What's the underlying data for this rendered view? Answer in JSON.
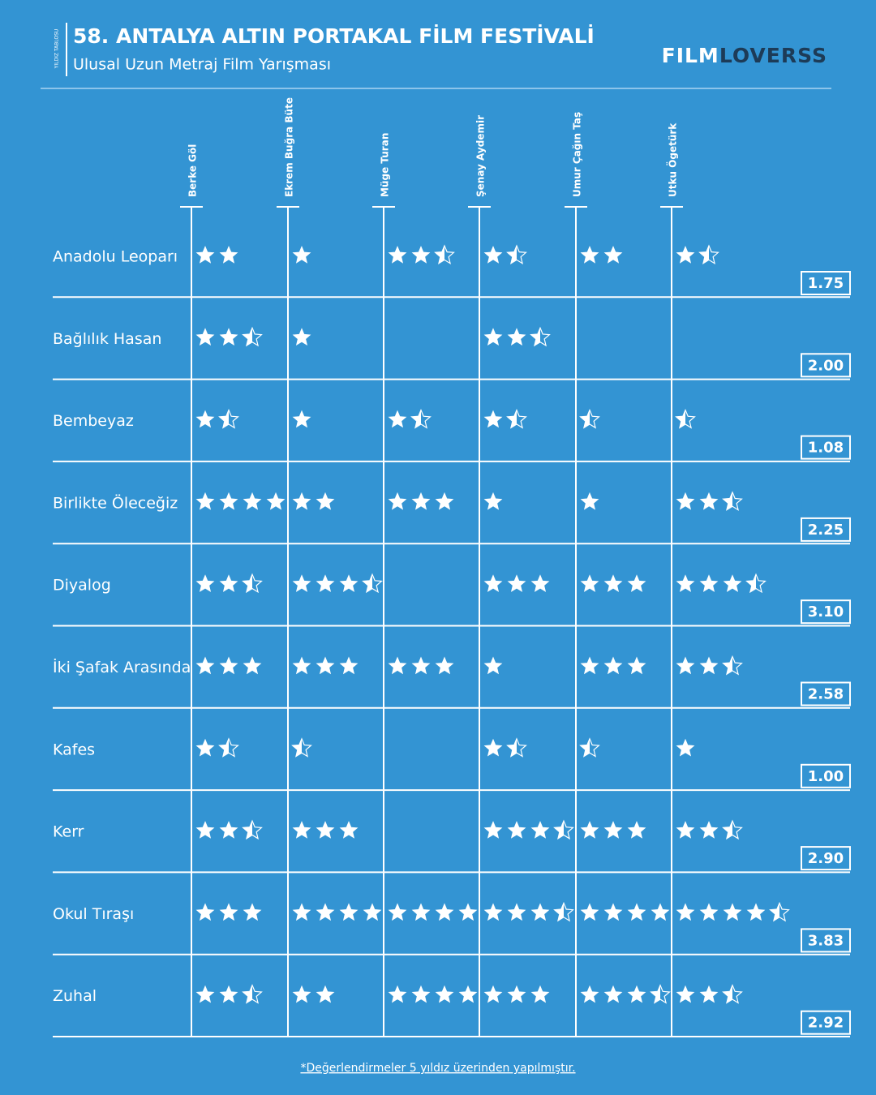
{
  "header": {
    "side_label": "YILDIZ TABLOSU",
    "title": "58. ANTALYA ALTIN PORTAKAL FİLM FESTİVALİ",
    "subtitle": "Ulusal Uzun Metraj Film Yarışması",
    "brand_first": "FILM",
    "brand_second": "LOVERSS"
  },
  "table": {
    "critics": [
      "Berke Göl",
      "Ekrem Buğra Büte",
      "Müge Turan",
      "Şenay Aydemir",
      "Umur Çağın Taş",
      "Utku Ögetürk"
    ],
    "rows": [
      {
        "film": "Anadolu Leoparı",
        "ratings": [
          2,
          1,
          2.5,
          1.5,
          2,
          1.5
        ],
        "average": "1.75"
      },
      {
        "film": "Bağlılık Hasan",
        "ratings": [
          2.5,
          1,
          null,
          2.5,
          null,
          null
        ],
        "average": "2.00"
      },
      {
        "film": "Bembeyaz",
        "ratings": [
          1.5,
          1,
          1.5,
          1.5,
          0.5,
          0.5
        ],
        "average": "1.08"
      },
      {
        "film": "Birlikte Öleceğiz",
        "ratings": [
          4,
          2,
          3,
          1,
          1,
          2.5
        ],
        "average": "2.25"
      },
      {
        "film": "Diyalog",
        "ratings": [
          2.5,
          3.5,
          null,
          3,
          3,
          3.5
        ],
        "average": "3.10"
      },
      {
        "film": "İki Şafak Arasında",
        "ratings": [
          3,
          3,
          3,
          1,
          3,
          2.5
        ],
        "average": "2.58"
      },
      {
        "film": "Kafes",
        "ratings": [
          1.5,
          0.5,
          null,
          1.5,
          0.5,
          1
        ],
        "average": "1.00"
      },
      {
        "film": "Kerr",
        "ratings": [
          2.5,
          3,
          null,
          3.5,
          3,
          2.5
        ],
        "average": "2.90"
      },
      {
        "film": "Okul Tıraşı",
        "ratings": [
          3,
          4,
          4,
          3.5,
          4,
          4.5
        ],
        "average": "3.83"
      },
      {
        "film": "Zuhal",
        "ratings": [
          2.5,
          2,
          4,
          3,
          3.5,
          2.5
        ],
        "average": "2.92"
      }
    ]
  },
  "footnote": "*Değerlendirmeler 5 yıldız üzerinden yapılmıştır."
}
